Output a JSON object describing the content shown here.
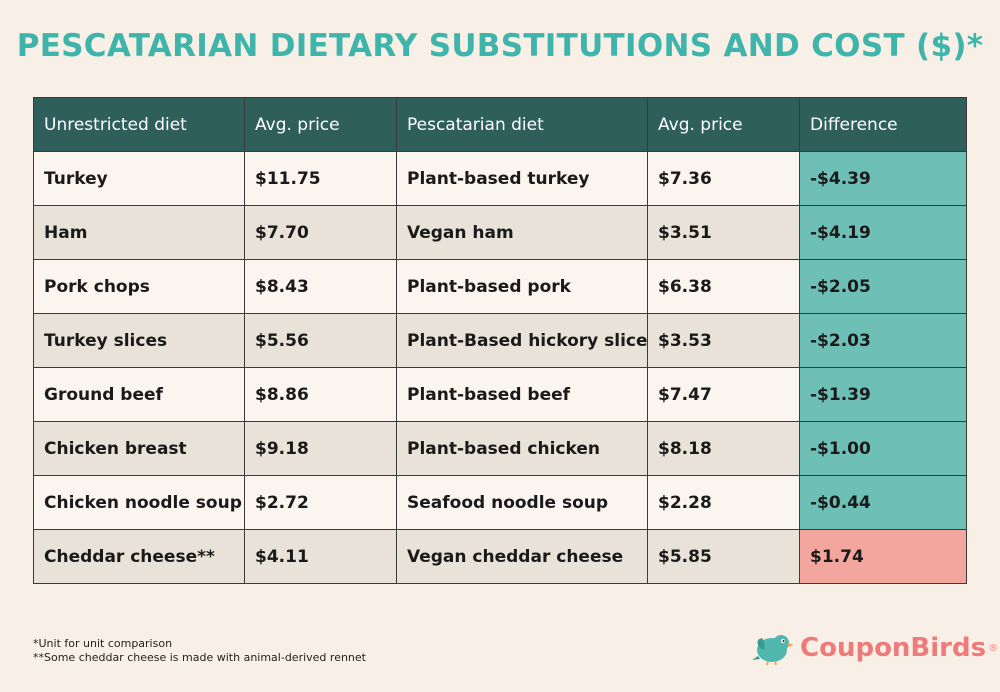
{
  "title": "PESCATARIAN DIETARY SUBSTITUTIONS AND COST ($)*",
  "chart_data": {
    "type": "table",
    "title": "PESCATARIAN DIETARY SUBSTITUTIONS AND COST ($)*",
    "columns": [
      "Unrestricted diet",
      "Avg. price",
      "Pescatarian diet",
      "Avg. price",
      "Difference"
    ],
    "rows": [
      {
        "unrestricted": "Turkey",
        "unrestricted_price": "$11.75",
        "pescatarian": "Plant-based turkey",
        "pescatarian_price": "$7.36",
        "difference": "-$4.39",
        "difference_value": -4.39
      },
      {
        "unrestricted": "Ham",
        "unrestricted_price": "$7.70",
        "pescatarian": "Vegan ham",
        "pescatarian_price": "$3.51",
        "difference": "-$4.19",
        "difference_value": -4.19
      },
      {
        "unrestricted": "Pork chops",
        "unrestricted_price": "$8.43",
        "pescatarian": "Plant-based pork",
        "pescatarian_price": "$6.38",
        "difference": "-$2.05",
        "difference_value": -2.05
      },
      {
        "unrestricted": "Turkey slices",
        "unrestricted_price": "$5.56",
        "pescatarian": "Plant-Based hickory slices",
        "pescatarian_price": "$3.53",
        "difference": "-$2.03",
        "difference_value": -2.03
      },
      {
        "unrestricted": "Ground beef",
        "unrestricted_price": "$8.86",
        "pescatarian": "Plant-based beef",
        "pescatarian_price": "$7.47",
        "difference": "-$1.39",
        "difference_value": -1.39
      },
      {
        "unrestricted": "Chicken breast",
        "unrestricted_price": "$9.18",
        "pescatarian": "Plant-based chicken",
        "pescatarian_price": "$8.18",
        "difference": "-$1.00",
        "difference_value": -1.0
      },
      {
        "unrestricted": "Chicken noodle soup",
        "unrestricted_price": "$2.72",
        "pescatarian": "Seafood noodle soup",
        "pescatarian_price": "$2.28",
        "difference": "-$0.44",
        "difference_value": -0.44
      },
      {
        "unrestricted": "Cheddar cheese**",
        "unrestricted_price": "$4.11",
        "pescatarian": "Vegan cheddar cheese",
        "pescatarian_price": "$5.85",
        "difference": "$1.74",
        "difference_value": 1.74
      }
    ]
  },
  "colors": {
    "title": "#3fb4aa",
    "header_bg": "#2e5f5a",
    "negative_diff": "#6ec0b7",
    "positive_diff": "#f3a69d",
    "logo": "#ef7a7a"
  },
  "footnotes": [
    "*Unit for unit comparison",
    "**Some cheddar cheese is made with animal-derived rennet"
  ],
  "logo": {
    "text": "CouponBirds",
    "reg": "®",
    "icon": "bird-icon"
  }
}
